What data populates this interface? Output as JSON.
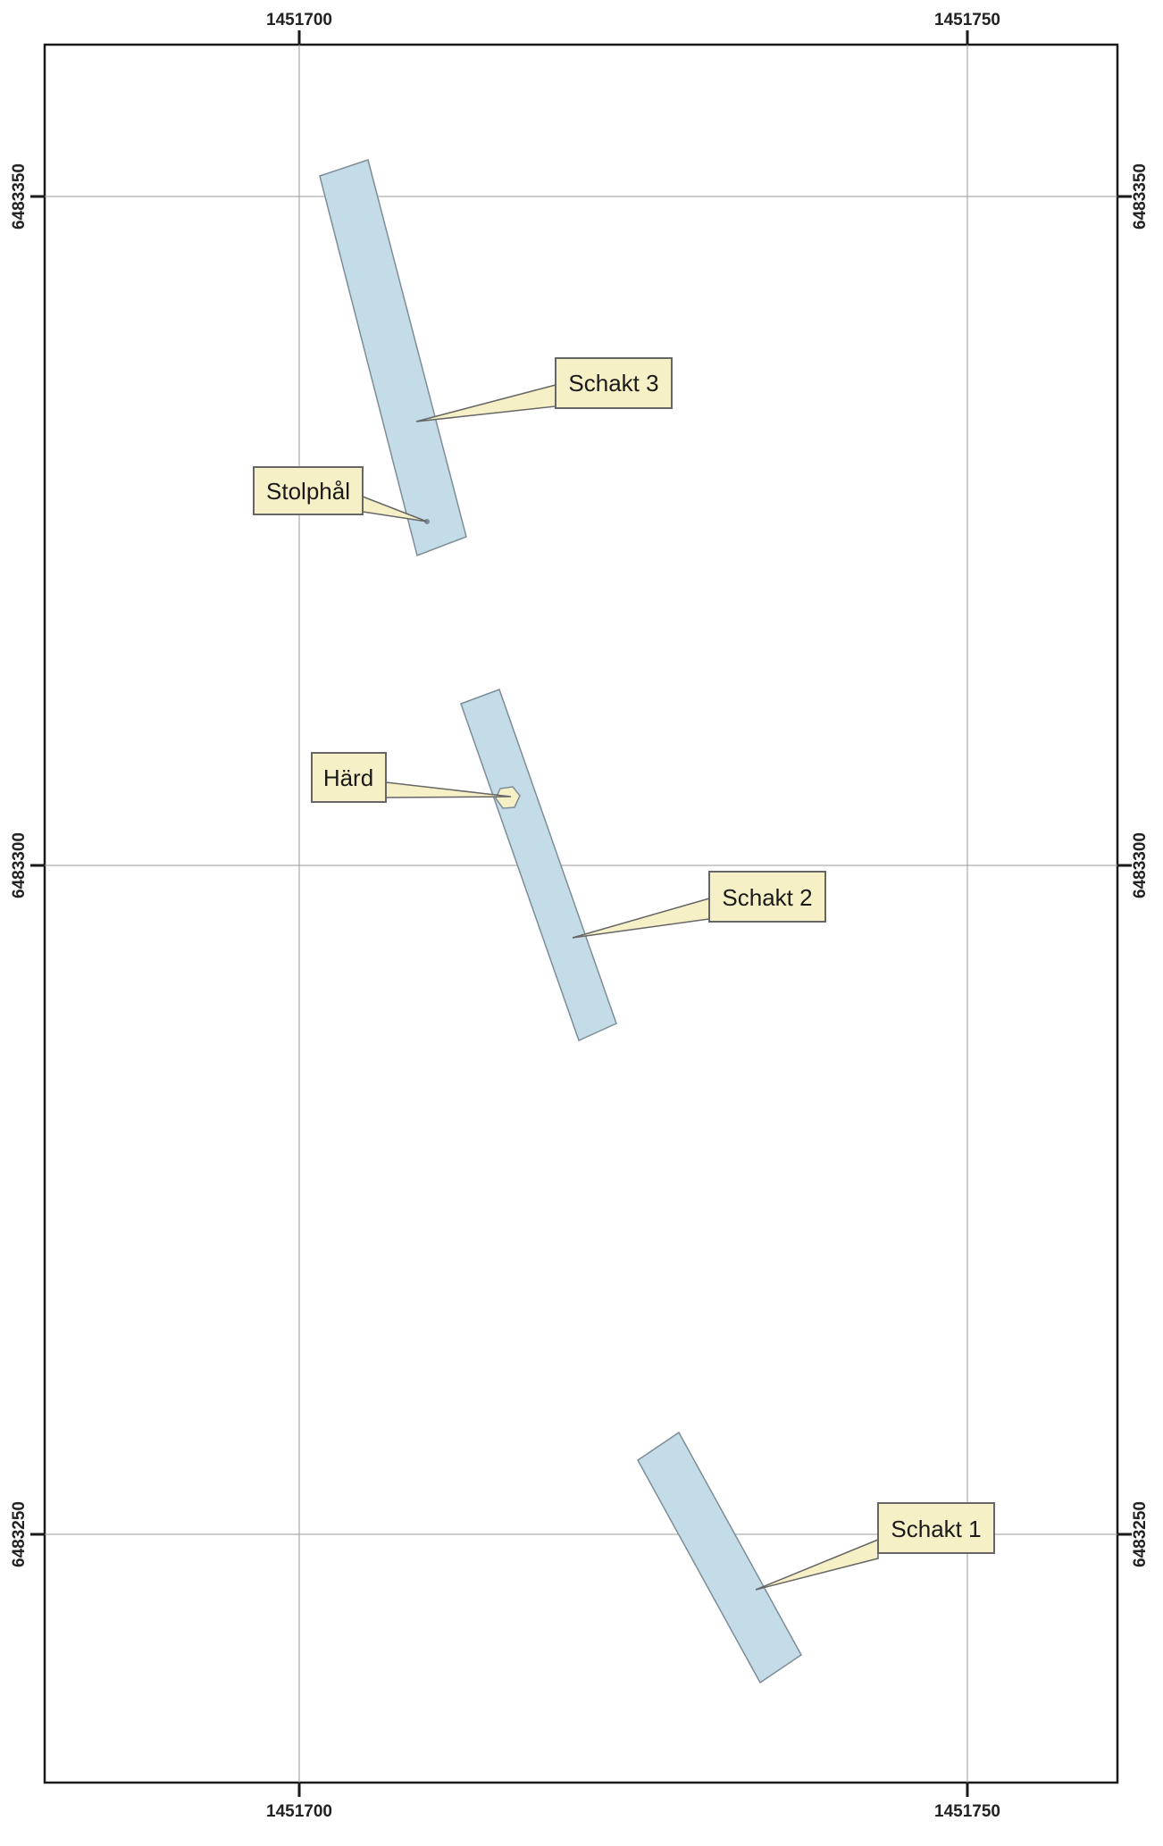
{
  "map": {
    "x_ticks": [
      "1451700",
      "1451750"
    ],
    "y_ticks": [
      "6483350",
      "6483300",
      "6483250"
    ],
    "features": [
      {
        "name": "Schakt 1",
        "type": "trench"
      },
      {
        "name": "Schakt 2",
        "type": "trench"
      },
      {
        "name": "Schakt 3",
        "type": "trench"
      },
      {
        "name": "Härd",
        "type": "hearth"
      },
      {
        "name": "Stolphål",
        "type": "posthole"
      }
    ],
    "colors": {
      "trench_fill": "#c4dbe8",
      "trench_stroke": "#7d8d98",
      "label_fill": "#f6f0c6",
      "label_stroke": "#666666",
      "grid": "#9a9a9a",
      "frame": "#1a1a1a"
    }
  }
}
